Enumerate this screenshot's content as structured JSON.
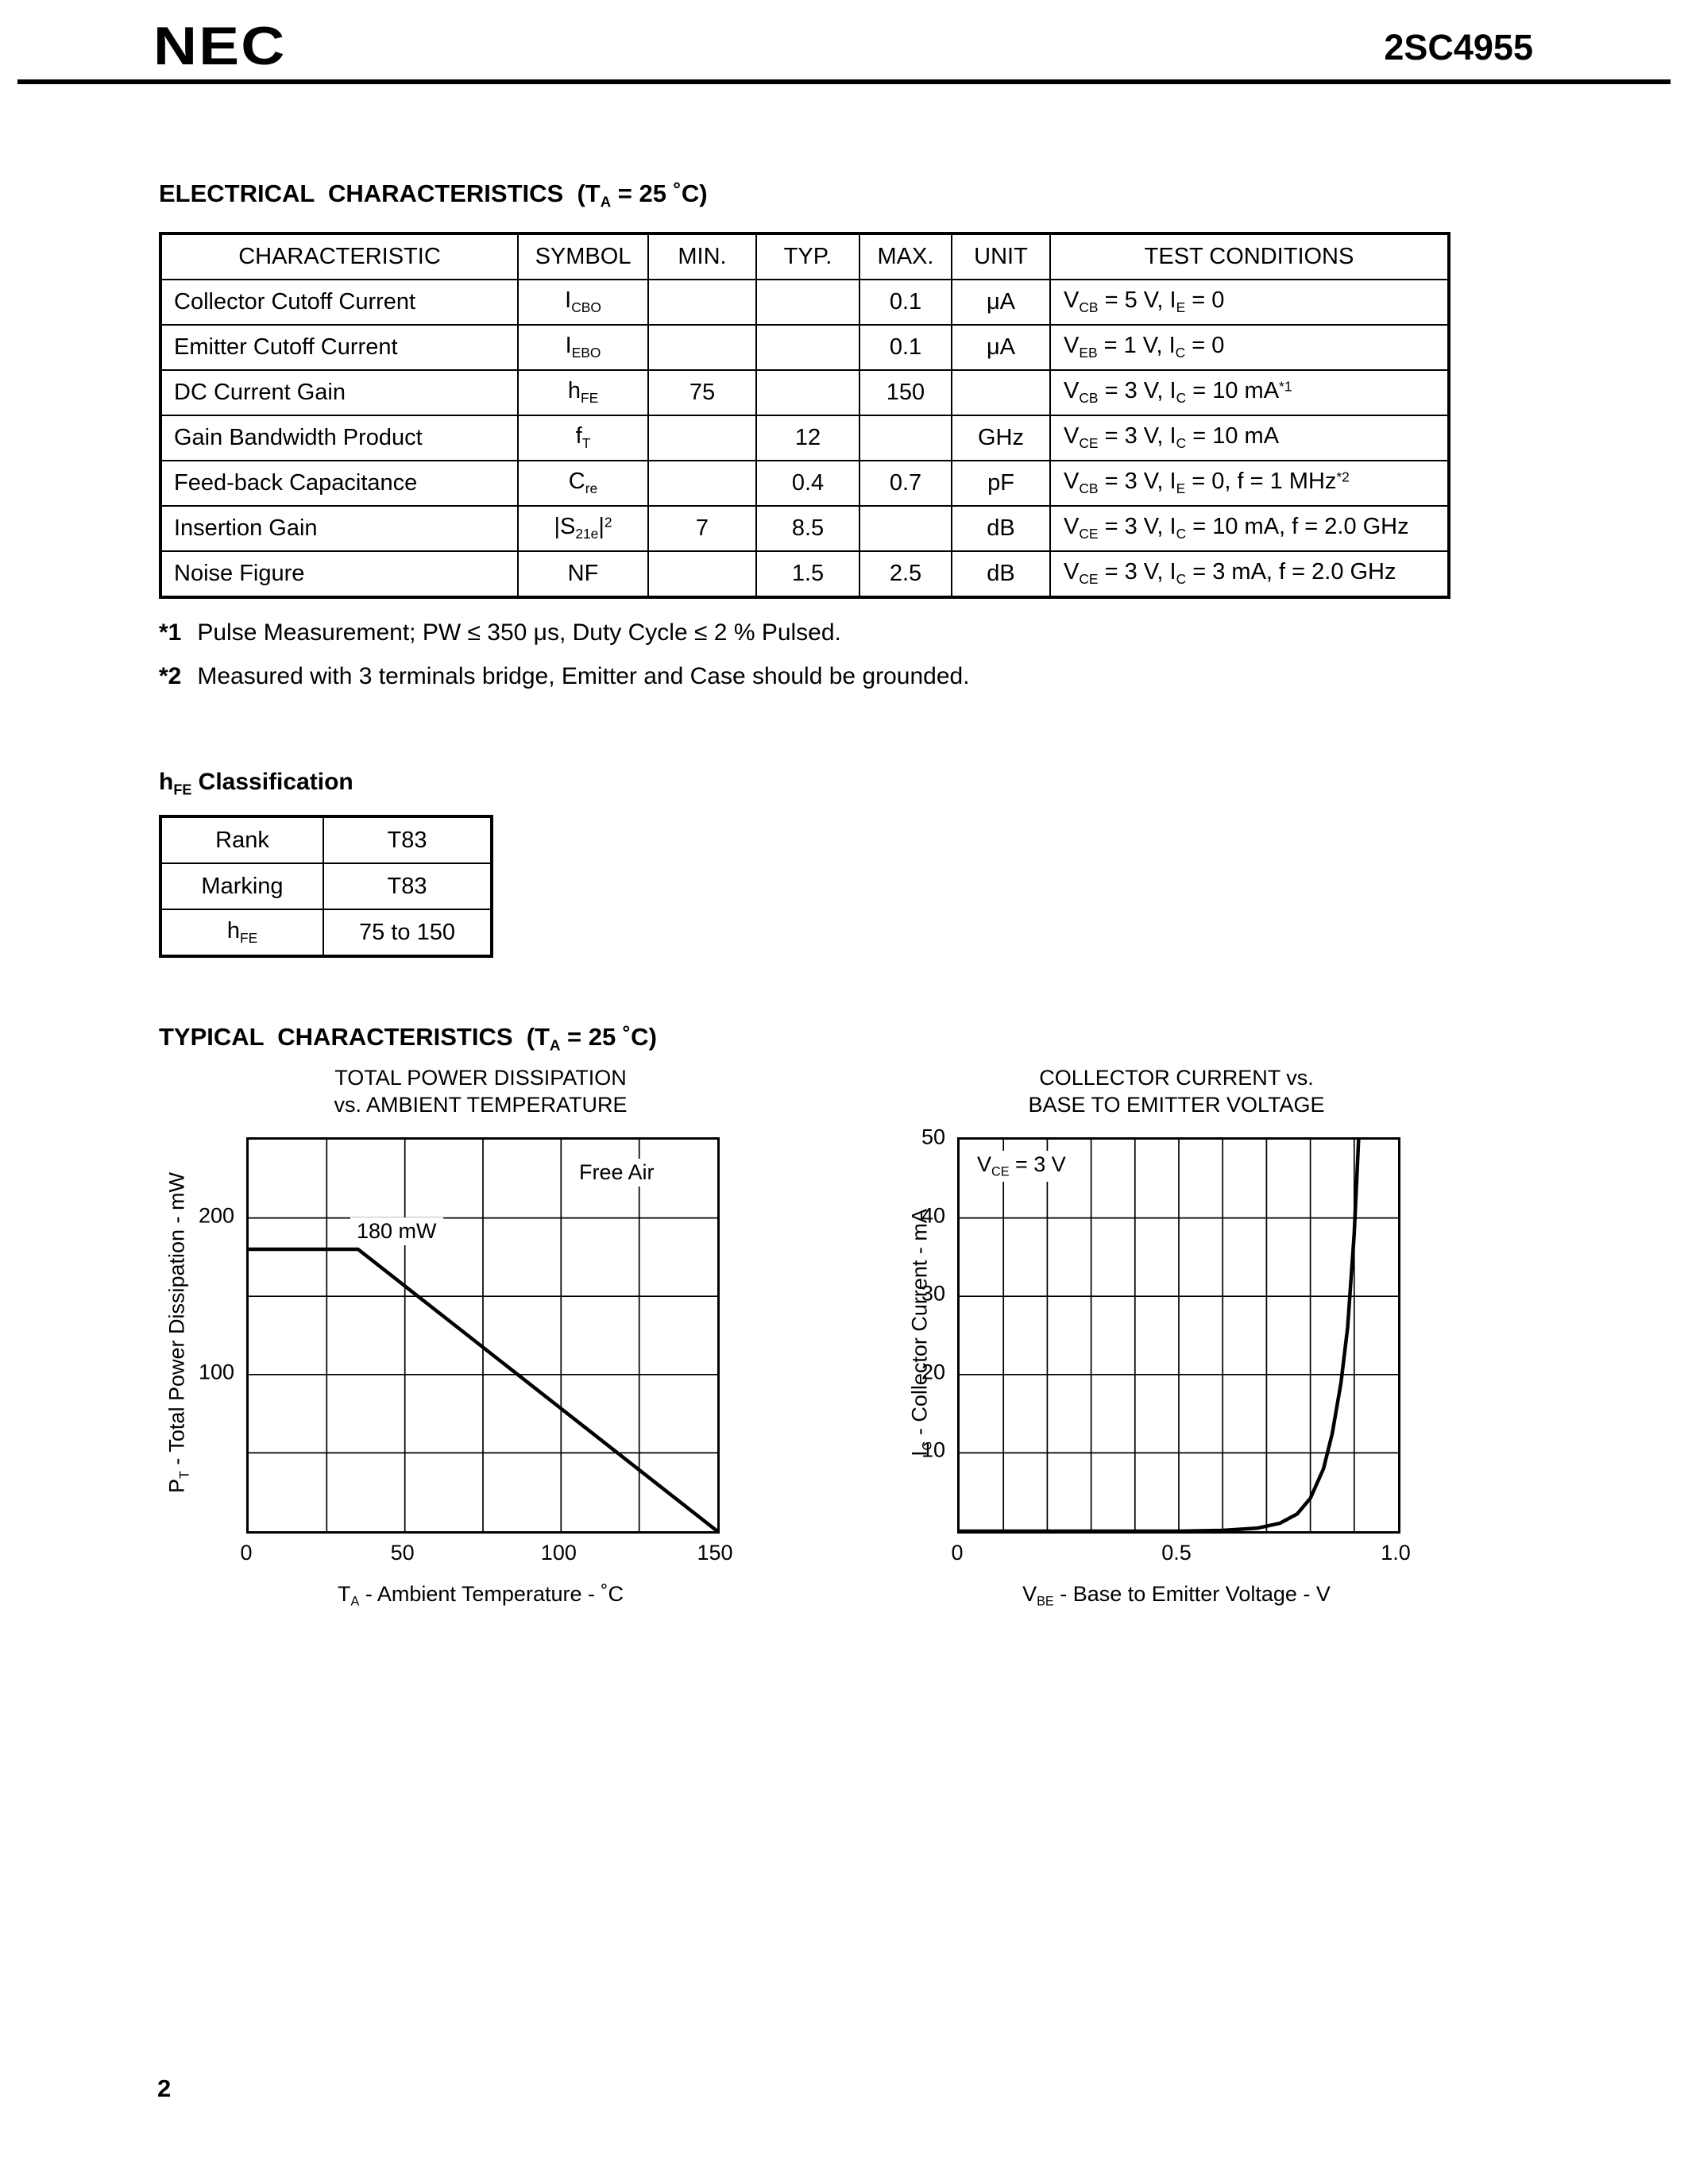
{
  "header": {
    "logo": "NEC",
    "part_number": "2SC4955"
  },
  "sections": {
    "electrical": {
      "title": "ELECTRICAL  CHARACTERISTICS  (T~A~ = 25 ˚C)"
    },
    "hfe_classification": {
      "title": "h~FE~ Classification"
    },
    "typical": {
      "title": "TYPICAL  CHARACTERISTICS  (T~A~ = 25 ˚C)"
    }
  },
  "electrical_table": {
    "headers": [
      "CHARACTERISTIC",
      "SYMBOL",
      "MIN.",
      "TYP.",
      "MAX.",
      "UNIT",
      "TEST CONDITIONS"
    ],
    "rows": [
      [
        "Collector Cutoff Current",
        "I~CBO~",
        "",
        "",
        "0.1",
        "μA",
        "V~CB~ = 5 V, I~E~ = 0"
      ],
      [
        "Emitter Cutoff Current",
        "I~EBO~",
        "",
        "",
        "0.1",
        "μA",
        "V~EB~ = 1 V, I~C~ = 0"
      ],
      [
        "DC Current Gain",
        "h~FE~",
        "75",
        "",
        "150",
        "",
        "V~CB~ = 3 V, I~C~ = 10 mA^*1^"
      ],
      [
        "Gain Bandwidth Product",
        "f~T~",
        "",
        "12",
        "",
        "GHz",
        "V~CE~ = 3 V, I~C~ = 10 mA"
      ],
      [
        "Feed-back Capacitance",
        "C~re~",
        "",
        "0.4",
        "0.7",
        "pF",
        "V~CB~ = 3 V, I~E~ = 0, f = 1 MHz^*2^"
      ],
      [
        "Insertion Gain",
        "|S~21e~|^2^",
        "7",
        "8.5",
        "",
        "dB",
        "V~CE~ = 3 V, I~C~ = 10 mA, f = 2.0 GHz"
      ],
      [
        "Noise Figure",
        "NF",
        "",
        "1.5",
        "2.5",
        "dB",
        "V~CE~ = 3 V, I~C~ = 3 mA, f = 2.0 GHz"
      ]
    ]
  },
  "footnotes": [
    {
      "marker": "*1",
      "text": "Pulse Measurement; PW ≤ 350 μs, Duty Cycle ≤ 2 % Pulsed."
    },
    {
      "marker": "*2",
      "text": "Measured with 3 terminals bridge, Emitter and Case should be grounded."
    }
  ],
  "hfe_table": {
    "rows": [
      [
        "Rank",
        "T83"
      ],
      [
        "Marking",
        "T83"
      ],
      [
        "h~FE~",
        "75 to 150"
      ]
    ]
  },
  "chart_data": [
    {
      "type": "line",
      "title": "TOTAL POWER DISSIPATION\nvs. AMBIENT TEMPERATURE",
      "xlabel": "T~A~ - Ambient Temperature - ˚C",
      "ylabel": "P~T~ - Total Power Dissipation - mW",
      "xlim": [
        0,
        150
      ],
      "ylim": [
        0,
        250
      ],
      "x_grid_step": 25,
      "y_grid_step": 50,
      "grid": true,
      "x_ticks": [
        {
          "v": 0,
          "label": "0"
        },
        {
          "v": 50,
          "label": "50"
        },
        {
          "v": 100,
          "label": "100"
        },
        {
          "v": 150,
          "label": "150"
        }
      ],
      "y_ticks": [
        {
          "v": 100,
          "label": "100"
        },
        {
          "v": 200,
          "label": "200"
        }
      ],
      "annotations": [
        {
          "text": "Free Air"
        },
        {
          "text": "180 mW"
        }
      ],
      "series": [
        {
          "name": "power-derating",
          "points": [
            [
              0,
              180
            ],
            [
              35,
              180
            ],
            [
              150,
              0
            ]
          ]
        }
      ]
    },
    {
      "type": "line",
      "title": "COLLECTOR CURRENT vs.\nBASE TO EMITTER VOLTAGE",
      "xlabel": "V~BE~ - Base to Emitter Voltage - V",
      "ylabel": "I~C~ - Collector Current - mA",
      "xlim": [
        0,
        1.0
      ],
      "ylim": [
        0,
        50
      ],
      "x_grid_step": 0.1,
      "y_grid_step": 10,
      "grid": true,
      "x_ticks": [
        {
          "v": 0,
          "label": "0"
        },
        {
          "v": 0.5,
          "label": "0.5"
        },
        {
          "v": 1.0,
          "label": "1.0"
        }
      ],
      "y_ticks": [
        {
          "v": 10,
          "label": "10"
        },
        {
          "v": 20,
          "label": "20"
        },
        {
          "v": 30,
          "label": "30"
        },
        {
          "v": 40,
          "label": "40"
        },
        {
          "v": 50,
          "label": "50"
        }
      ],
      "annotations": [
        {
          "text": "V~CE~ = 3 V"
        }
      ],
      "series": [
        {
          "name": "ic-vs-vbe",
          "points": [
            [
              0,
              0
            ],
            [
              0.5,
              0
            ],
            [
              0.6,
              0.1
            ],
            [
              0.68,
              0.4
            ],
            [
              0.73,
              1
            ],
            [
              0.77,
              2.2
            ],
            [
              0.8,
              4.2
            ],
            [
              0.83,
              8
            ],
            [
              0.85,
              12.5
            ],
            [
              0.87,
              19
            ],
            [
              0.885,
              26
            ],
            [
              0.9,
              38
            ],
            [
              0.91,
              50
            ]
          ]
        }
      ]
    }
  ],
  "footer": {
    "page_number": "2"
  }
}
